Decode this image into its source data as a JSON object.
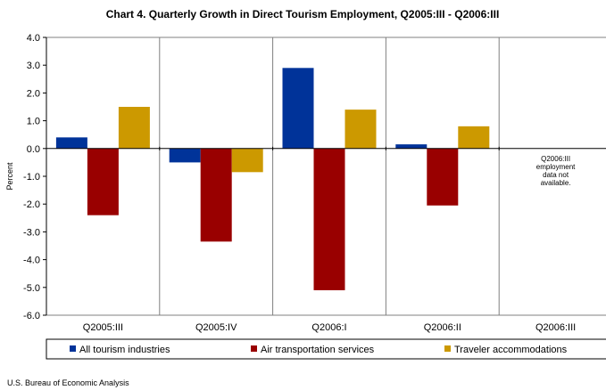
{
  "chart_data": {
    "type": "bar",
    "title": "Chart 4. Quarterly Growth in Direct Tourism Employment, Q2005:III - Q2006:III",
    "ylabel": "Percent",
    "xlabel": "",
    "categories": [
      "Q2005:III",
      "Q2005:IV",
      "Q2006:I",
      "Q2006:II",
      "Q2006:III"
    ],
    "series": [
      {
        "name": "All tourism industries",
        "color": "#003399",
        "values": [
          0.4,
          -0.5,
          2.9,
          0.15,
          null
        ]
      },
      {
        "name": "Air transportation services",
        "color": "#990000",
        "values": [
          -2.4,
          -3.35,
          -5.1,
          -2.05,
          null
        ]
      },
      {
        "name": "Traveler accommodations",
        "color": "#CC9900",
        "values": [
          1.5,
          -0.85,
          1.4,
          0.8,
          null
        ]
      }
    ],
    "ylim": [
      -6.0,
      4.0
    ],
    "yticks": [
      "4.0",
      "3.0",
      "2.0",
      "1.0",
      "0.0",
      "-1.0",
      "-2.0",
      "-3.0",
      "-4.0",
      "-5.0",
      "-6.0"
    ],
    "ytick_values": [
      4,
      3,
      2,
      1,
      0,
      -1,
      -2,
      -3,
      -4,
      -5,
      -6
    ],
    "grid": false,
    "legend_position": "bottom",
    "annotation": [
      "Q2006:III",
      "employment",
      "data not",
      "available."
    ]
  },
  "source": "U.S. Bureau of Economic Analysis"
}
